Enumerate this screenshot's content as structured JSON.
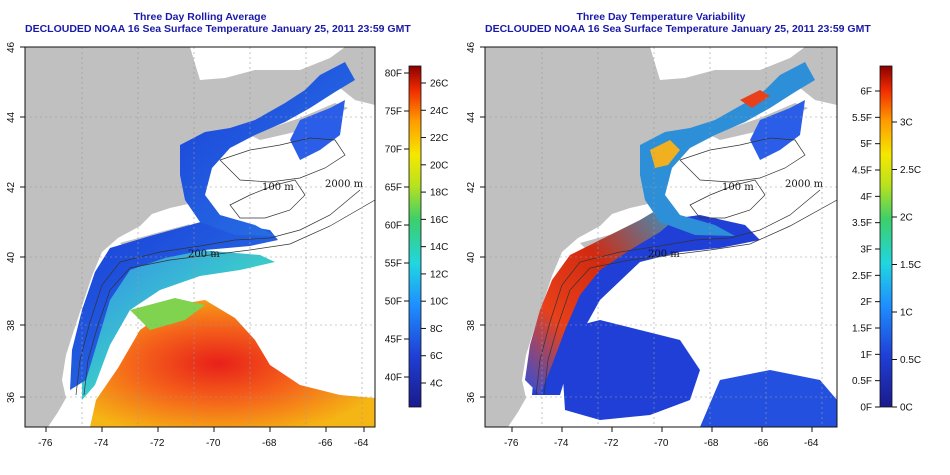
{
  "left_panel": {
    "title": "Three Day Rolling Average",
    "subtitle": "DECLOUDED NOAA 16 Sea Surface Temperature January 25, 2011 23:59 GMT",
    "x_ticks": [
      "-76",
      "-74",
      "-72",
      "-70",
      "-68",
      "-66",
      "-64"
    ],
    "y_ticks": [
      "36",
      "38",
      "40",
      "42",
      "44",
      "46"
    ],
    "colorbar": {
      "f_labels": [
        "80F",
        "75F",
        "70F",
        "65F",
        "60F",
        "55F",
        "50F",
        "45F",
        "40F"
      ],
      "c_labels": [
        "26C",
        "24C",
        "22C",
        "20C",
        "18C",
        "16C",
        "14C",
        "12C",
        "10C",
        "8C",
        "6C",
        "4C"
      ]
    }
  },
  "right_panel": {
    "title": "Three Day Temperature Variability",
    "subtitle": "DECLOUDED NOAA 16 Sea Surface Temperature January 25, 2011 23:59 GMT",
    "x_ticks": [
      "-76",
      "-74",
      "-72",
      "-70",
      "-68",
      "-66",
      "-64"
    ],
    "y_ticks": [
      "36",
      "38",
      "40",
      "42",
      "44",
      "46"
    ],
    "colorbar": {
      "f_labels": [
        "6F",
        "5.5F",
        "5F",
        "4.5F",
        "4F",
        "3.5F",
        "3F",
        "2.5F",
        "2F",
        "1.5F",
        "1F",
        "0.5F",
        "0F"
      ],
      "c_labels": [
        "3C",
        "2.5C",
        "2C",
        "1.5C",
        "1C",
        "0.5C",
        "0C"
      ]
    }
  },
  "isobath_labels": [
    "200 m",
    "100 m",
    "2000 m"
  ],
  "colors": {
    "land": "#c0c0c0",
    "ocean_nodata": "#ffffff",
    "title_blue": "#1a1aa8",
    "grid": "#9a9a9a"
  }
}
